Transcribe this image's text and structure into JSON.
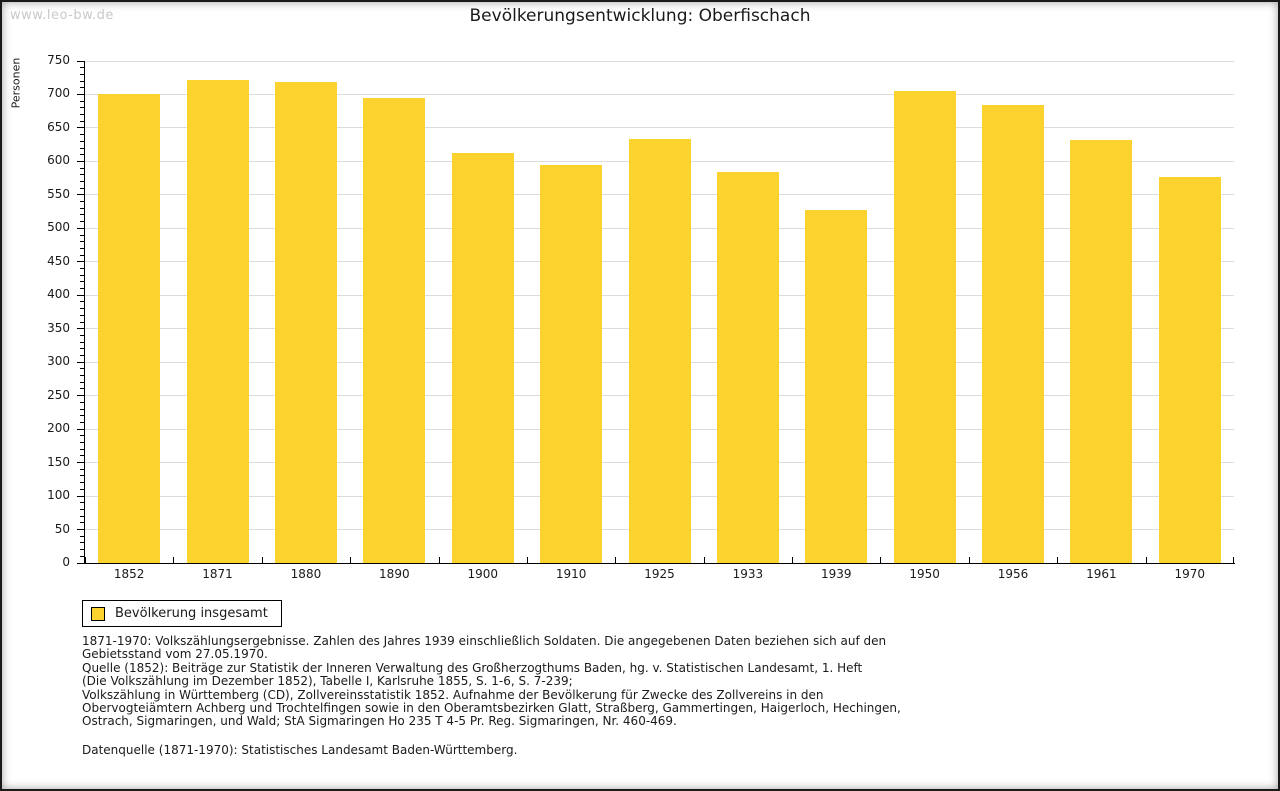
{
  "window": {
    "watermark": "www.leo-bw.de"
  },
  "chart_data": {
    "type": "bar",
    "title": "Bevölkerungsentwicklung: Oberfischach",
    "xlabel": "",
    "ylabel": "Personen",
    "categories": [
      "1852",
      "1871",
      "1880",
      "1890",
      "1900",
      "1910",
      "1925",
      "1933",
      "1939",
      "1950",
      "1956",
      "1961",
      "1970"
    ],
    "values": [
      700,
      722,
      718,
      695,
      612,
      595,
      633,
      584,
      527,
      705,
      685,
      632,
      577
    ],
    "ylim": [
      0,
      750
    ],
    "ytick_interval": 50,
    "minor_tick_interval": 10,
    "grid": "horizontal",
    "legend_position": "bottom-left",
    "bar_color": "#FCD32E",
    "grid_color": "#DCDCDC",
    "axis_color": "#000000",
    "legend": {
      "entries": [
        "Bevölkerung insgesamt"
      ]
    }
  },
  "footnotes": {
    "sources": [
      "1871-1970: Volkszählungsergebnisse. Zahlen des Jahres 1939 einschließlich Soldaten. Die angegebenen Daten beziehen sich auf den",
      "Gebietsstand vom 27.05.1970.",
      "Quelle (1852): Beiträge zur Statistik der Inneren Verwaltung des Großherzogthums Baden, hg. v. Statistischen Landesamt, 1. Heft",
      "(Die Volkszählung im Dezember 1852), Tabelle I, Karlsruhe 1855, S. 1-6, S. 7-239;",
      "Volkszählung in Württemberg (CD), Zollvereinsstatistik 1852. Aufnahme der Bevölkerung für Zwecke des Zollvereins in den",
      "Obervogteiämtern Achberg und Trochtelfingen sowie in den Oberamtsbezirken Glatt, Straßberg, Gammertingen, Haigerloch, Hechingen,",
      "Ostrach, Sigmaringen, und Wald; StA Sigmaringen Ho 235 T 4-5 Pr. Reg. Sigmaringen, Nr. 460-469."
    ],
    "datasource": "Datenquelle (1871-1970): Statistisches Landesamt Baden-Württemberg."
  }
}
